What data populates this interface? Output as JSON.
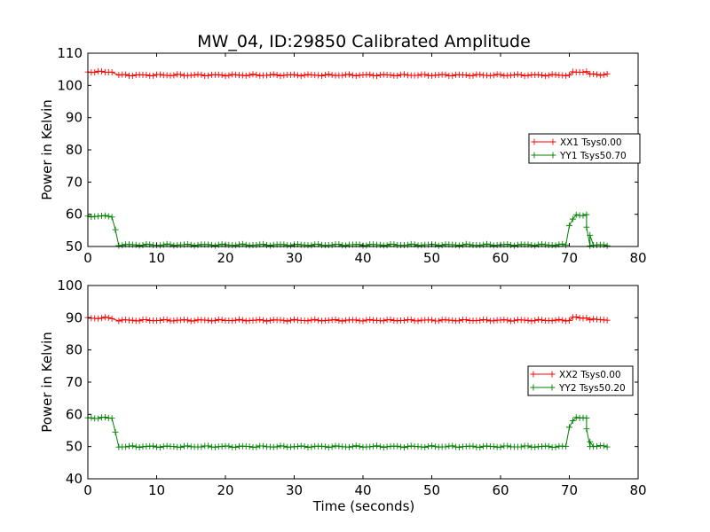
{
  "chart_data": [
    {
      "type": "line",
      "title": "MW_04, ID:29850 Calibrated Amplitude",
      "xlabel": "",
      "ylabel": "Power in Kelvin",
      "xlim": [
        0,
        80
      ],
      "ylim": [
        50,
        110
      ],
      "xticks": [
        "0",
        "10",
        "20",
        "30",
        "40",
        "50",
        "60",
        "70",
        "80"
      ],
      "yticks": [
        "50",
        "60",
        "70",
        "80",
        "90",
        "100",
        "110"
      ],
      "grid": false,
      "legend_position": "right",
      "markers": "plus",
      "sample_interval": 0.5,
      "series": [
        {
          "name": "XX1 Tsys0.00",
          "color": "#ff0000",
          "segments": [
            {
              "from": 0,
              "to": 3.5,
              "value": 104.2
            },
            {
              "from": 4.5,
              "to": 70,
              "value": 103.2
            },
            {
              "from": 70.5,
              "to": 72.5,
              "value": 104.2
            },
            {
              "from": 73,
              "to": 75.5,
              "value": 103.4
            }
          ]
        },
        {
          "name": "YY1 Tsys50.70",
          "color": "#008000",
          "segments": [
            {
              "from": 0,
              "to": 3.5,
              "value": 59.4
            },
            {
              "from": 4.5,
              "to": 69.5,
              "value": 50.5
            },
            {
              "from": 71,
              "to": 72.5,
              "value": 59.8
            },
            {
              "from": 73,
              "to": 75.5,
              "value": 50.4
            }
          ],
          "extra_points": [
            [
              4,
              55.2
            ],
            [
              70,
              56.5
            ],
            [
              70.5,
              58.5
            ],
            [
              72.5,
              56.0
            ],
            [
              73,
              53.5
            ]
          ]
        }
      ]
    },
    {
      "type": "line",
      "title": "",
      "xlabel": "Time (seconds)",
      "ylabel": "Power in Kelvin",
      "xlim": [
        0,
        80
      ],
      "ylim": [
        40,
        100
      ],
      "xticks": [
        "0",
        "10",
        "20",
        "30",
        "40",
        "50",
        "60",
        "70",
        "80"
      ],
      "yticks": [
        "40",
        "50",
        "60",
        "70",
        "80",
        "90",
        "100"
      ],
      "grid": false,
      "legend_position": "right",
      "markers": "plus",
      "sample_interval": 0.5,
      "series": [
        {
          "name": "XX2 Tsys0.00",
          "color": "#ff0000",
          "segments": [
            {
              "from": 0,
              "to": 3.5,
              "value": 89.9
            },
            {
              "from": 4.5,
              "to": 70,
              "value": 89.2
            },
            {
              "from": 70.5,
              "to": 72.5,
              "value": 90.0
            },
            {
              "from": 73,
              "to": 75.5,
              "value": 89.4
            }
          ]
        },
        {
          "name": "YY2 Tsys50.20",
          "color": "#008000",
          "segments": [
            {
              "from": 0,
              "to": 3.5,
              "value": 58.9
            },
            {
              "from": 4.5,
              "to": 69.5,
              "value": 50.0
            },
            {
              "from": 71,
              "to": 72.5,
              "value": 59.0
            },
            {
              "from": 73,
              "to": 75.5,
              "value": 50.1
            }
          ],
          "extra_points": [
            [
              4,
              54.5
            ],
            [
              70,
              56.0
            ],
            [
              70.5,
              58.0
            ],
            [
              72.5,
              55.5
            ],
            [
              73,
              51.5
            ]
          ]
        }
      ]
    }
  ]
}
